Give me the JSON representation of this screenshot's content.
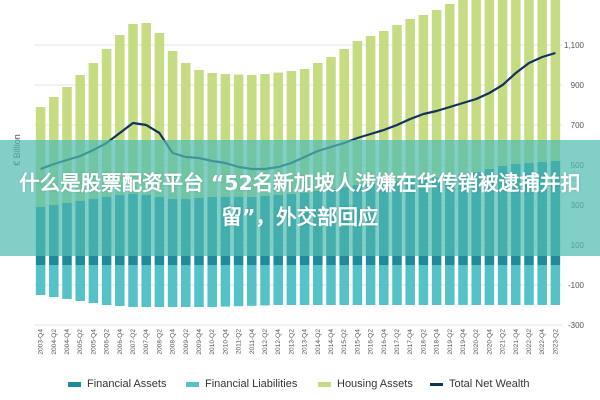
{
  "headline": "什么是股票配资平台 “52名新加坡人涉嫌在华传销被逮捕并扣留”，外交部回应",
  "chart_data": {
    "type": "bar",
    "ylabel": "€ Billion",
    "ylim": [
      -300,
      1200
    ],
    "yticks": [
      -300,
      -100,
      100,
      300,
      500,
      700,
      900,
      1100
    ],
    "ytick_labels": [
      "-300",
      "-100",
      "100",
      "300",
      "500",
      "700",
      "900",
      "1,100"
    ],
    "grid": true,
    "legend_position": "bottom",
    "categories": [
      "2003-Q4",
      "2004-Q2",
      "2004-Q4",
      "2005-Q2",
      "2005-Q4",
      "2006-Q2",
      "2006-Q4",
      "2007-Q2",
      "2007-Q4",
      "2008-Q2",
      "2008-Q4",
      "2009-Q2",
      "2009-Q4",
      "2010-Q2",
      "2010-Q4",
      "2011-Q2",
      "2011-Q4",
      "2012-Q2",
      "2012-Q4",
      "2013-Q2",
      "2013-Q4",
      "2014-Q2",
      "2014-Q4",
      "2015-Q2",
      "2015-Q4",
      "2016-Q2",
      "2016-Q4",
      "2017-Q2",
      "2017-Q4",
      "2018-Q2",
      "2018-Q4",
      "2019-Q2",
      "2019-Q4",
      "2020-Q2",
      "2020-Q4",
      "2021-Q2",
      "2021-Q4",
      "2022-Q2",
      "2022-Q4",
      "2023-Q2"
    ],
    "series": [
      {
        "name": "Financial Assets",
        "type": "bar",
        "color": "#1f8a9a",
        "values": [
          290,
          300,
          310,
          320,
          330,
          340,
          350,
          355,
          350,
          340,
          330,
          330,
          335,
          340,
          340,
          340,
          340,
          345,
          350,
          355,
          360,
          370,
          380,
          390,
          400,
          405,
          410,
          420,
          430,
          430,
          435,
          445,
          455,
          465,
          480,
          495,
          505,
          510,
          515,
          520
        ]
      },
      {
        "name": "Financial Liabilities",
        "type": "bar",
        "color": "#55c2c7",
        "values": [
          -150,
          -160,
          -170,
          -180,
          -190,
          -200,
          -205,
          -210,
          -210,
          -210,
          -210,
          -210,
          -210,
          -210,
          -208,
          -206,
          -204,
          -202,
          -200,
          -200,
          -200,
          -200,
          -200,
          -200,
          -200,
          -200,
          -200,
          -200,
          -200,
          -200,
          -200,
          -200,
          -200,
          -200,
          -200,
          -200,
          -200,
          -200,
          -200,
          -200
        ]
      },
      {
        "name": "Housing Assets",
        "type": "bar",
        "color": "#c5dc82",
        "values": [
          500,
          540,
          580,
          630,
          680,
          740,
          800,
          850,
          860,
          820,
          740,
          680,
          640,
          620,
          615,
          612,
          610,
          610,
          612,
          615,
          620,
          640,
          660,
          690,
          720,
          740,
          760,
          780,
          800,
          820,
          840,
          860,
          880,
          900,
          950,
          1000,
          1060,
          1120,
          1140,
          1150
        ]
      },
      {
        "name": "Total Net Wealth",
        "type": "line",
        "color": "#10345a",
        "values": [
          480,
          505,
          525,
          545,
          575,
          610,
          660,
          710,
          700,
          660,
          560,
          540,
          535,
          520,
          510,
          490,
          480,
          480,
          490,
          510,
          540,
          570,
          590,
          610,
          635,
          655,
          675,
          700,
          730,
          755,
          770,
          790,
          810,
          830,
          860,
          900,
          960,
          1010,
          1040,
          1060
        ]
      }
    ]
  }
}
